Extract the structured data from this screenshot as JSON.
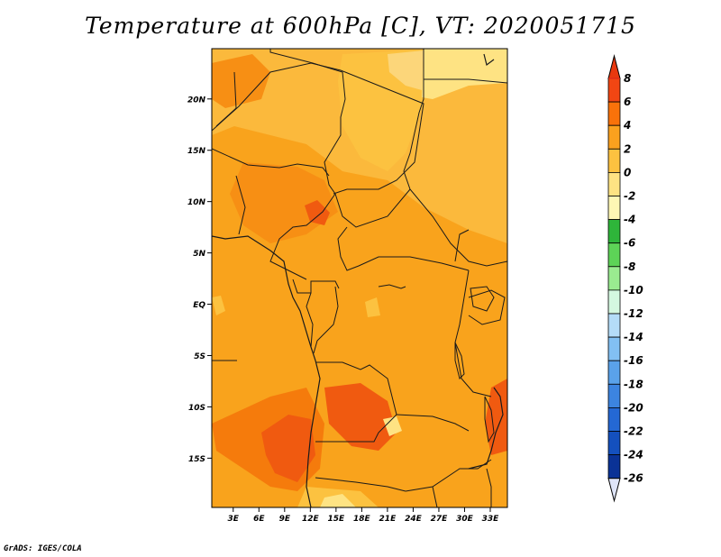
{
  "title": "Temperature at 600hPa [C], VT: 2020051715",
  "credit": "GrADS: IGES/COLA",
  "map": {
    "lat_labels": [
      {
        "label": "20N",
        "lat": 20
      },
      {
        "label": "15N",
        "lat": 15
      },
      {
        "label": "10N",
        "lat": 10
      },
      {
        "label": "5N",
        "lat": 5
      },
      {
        "label": "EQ",
        "lat": 0
      },
      {
        "label": "5S",
        "lat": -5
      },
      {
        "label": "10S",
        "lat": -10
      },
      {
        "label": "15S",
        "lat": -15
      }
    ],
    "lon_labels": [
      {
        "label": "3E",
        "lon": 3
      },
      {
        "label": "6E",
        "lon": 6
      },
      {
        "label": "9E",
        "lon": 9
      },
      {
        "label": "12E",
        "lon": 12
      },
      {
        "label": "15E",
        "lon": 15
      },
      {
        "label": "18E",
        "lon": 18
      },
      {
        "label": "21E",
        "lon": 21
      },
      {
        "label": "24E",
        "lon": 24
      },
      {
        "label": "27E",
        "lon": 27
      },
      {
        "label": "30E",
        "lon": 30
      },
      {
        "label": "33E",
        "lon": 33
      }
    ]
  },
  "legend": {
    "levels": [
      {
        "label": "8",
        "color": "#d8231e"
      },
      {
        "label": "6",
        "color": "#f24613"
      },
      {
        "label": "4",
        "color": "#f9720a"
      },
      {
        "label": "2",
        "color": "#fba11e"
      },
      {
        "label": "0",
        "color": "#fcc240"
      },
      {
        "label": "-2",
        "color": "#fee383"
      },
      {
        "label": "-4",
        "color": "#fef7b4"
      },
      {
        "label": "-6",
        "color": "#2eb53a"
      },
      {
        "label": "-8",
        "color": "#5dd357"
      },
      {
        "label": "-10",
        "color": "#9aeb90"
      },
      {
        "label": "-12",
        "color": "#d4f8e0"
      },
      {
        "label": "-14",
        "color": "#b4dcf8"
      },
      {
        "label": "-16",
        "color": "#82c0f3"
      },
      {
        "label": "-18",
        "color": "#5aa2ea"
      },
      {
        "label": "-20",
        "color": "#3c84e0"
      },
      {
        "label": "-22",
        "color": "#2468d4"
      },
      {
        "label": "-24",
        "color": "#1450be"
      },
      {
        "label": "-26",
        "color": "#0a3296"
      }
    ],
    "top_color": "#e8380f",
    "bottom_color": "#dfe5f8",
    "bottom_band_color": "#0c1a6e"
  },
  "colors": {
    "base": "#f9a31c",
    "warm": "#f57b0c",
    "hot": "#f05a10",
    "light": "#fbb93c",
    "pale": "#fcd67a",
    "border": "#1a1a1a"
  }
}
